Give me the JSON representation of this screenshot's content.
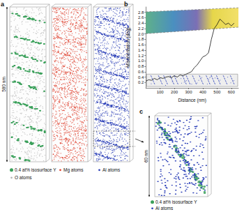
{
  "chart_data": {
    "type": "line",
    "xlabel": "Distance (nm)",
    "ylabel": "Misorientation (deg)",
    "x": [
      0,
      20,
      40,
      60,
      80,
      100,
      120,
      140,
      160,
      180,
      200,
      220,
      240,
      260,
      280,
      300,
      320,
      340,
      360,
      380,
      400,
      420,
      440,
      460,
      480,
      500,
      520,
      540,
      560,
      580,
      600,
      620
    ],
    "values": [
      0.25,
      0.3,
      0.28,
      0.35,
      0.3,
      0.38,
      0.35,
      0.4,
      0.42,
      0.38,
      0.45,
      0.4,
      0.48,
      0.45,
      0.5,
      0.55,
      0.6,
      0.75,
      0.85,
      1.0,
      1.15,
      1.2,
      1.3,
      1.8,
      2.2,
      2.35,
      2.55,
      2.45,
      2.35,
      2.4,
      2.3,
      2.4
    ],
    "color": "#111111",
    "xlim": [
      0,
      650
    ],
    "xticks": [
      100,
      200,
      300,
      400,
      500,
      600
    ],
    "ylim": [
      0,
      3
    ],
    "yticks": [
      0.2,
      0.4,
      0.6,
      0.8,
      {
        "value": 1,
        "label": "1.0"
      },
      1.2,
      1.4,
      1.6,
      1.8,
      {
        "value": 2,
        "label": "2.0"
      },
      2.2,
      2.4,
      2.6,
      2.8
    ],
    "grid": false
  },
  "figure": {
    "panel_a": {
      "label": "a",
      "scale_bar": "580 nm",
      "legend": [
        {
          "text": "0.4 at% isosurface Y",
          "color": "#3aa05a",
          "marker": "circle"
        },
        {
          "text": "O atoms",
          "color": "#b5b5b5",
          "marker": "dot"
        },
        {
          "text": "Mg atoms",
          "color": "#e0412f",
          "marker": "dot"
        },
        {
          "text": "Al atoms",
          "color": "#2b3fb8",
          "marker": "dot"
        }
      ]
    },
    "panel_b": {
      "label": "b"
    },
    "panel_c": {
      "label": "c",
      "scale_bar": "60 nm",
      "legend": [
        {
          "text": "0.4 at% isosurface Y",
          "color": "#3aa05a",
          "marker": "circle"
        },
        {
          "text": "Al atoms",
          "color": "#2b3fb8",
          "marker": "dot"
        }
      ]
    }
  }
}
